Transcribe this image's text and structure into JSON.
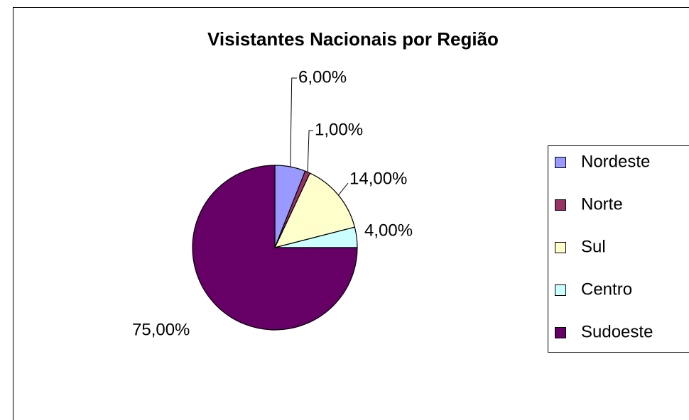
{
  "chart_data": {
    "type": "pie",
    "title": "Visistantes Nacionais por Região",
    "categories": [
      "Nordeste",
      "Norte",
      "Sul",
      "Centro",
      "Sudoeste"
    ],
    "values": [
      6,
      1,
      14,
      4,
      75
    ],
    "value_labels": [
      "6,00%",
      "1,00%",
      "14,00%",
      "4,00%",
      "75,00%"
    ],
    "colors": [
      "#9999ff",
      "#993366",
      "#ffffcc",
      "#ccffff",
      "#660066"
    ],
    "legend": "right"
  }
}
